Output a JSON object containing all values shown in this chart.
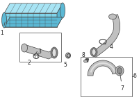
{
  "bg_color": "#ffffff",
  "line_color": "#444444",
  "label_color": "#222222",
  "ic_color": "#7fd4ea",
  "ic_dark": "#5bb8d4",
  "ic_top": "#a8e4f4",
  "gray_part": "#c0c0c0",
  "gray_dark": "#909090",
  "gray_light": "#e0e0e0"
}
